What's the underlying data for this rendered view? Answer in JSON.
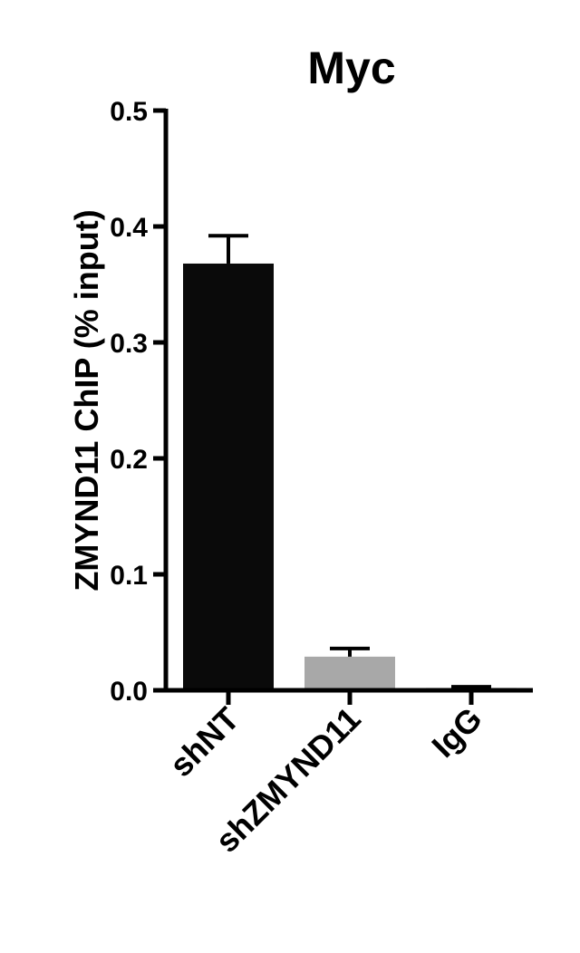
{
  "chart_data": {
    "type": "bar",
    "title": "Myc",
    "xlabel": "",
    "ylabel": "ZMYND11 ChIP (% input)",
    "categories": [
      "shNT",
      "shZMYND11",
      "IgG"
    ],
    "values": [
      0.368,
      0.029,
      0.002
    ],
    "errors": [
      0.024,
      0.007,
      0.001
    ],
    "colors": [
      "#0a0a0a",
      "#a8a8a8",
      "#8a8a8a"
    ],
    "ylim": [
      0,
      0.5
    ],
    "yticks": [
      0.0,
      0.1,
      0.2,
      0.3,
      0.4,
      0.5
    ],
    "ytick_labels": [
      "0.0",
      "0.1",
      "0.2",
      "0.3",
      "0.4",
      "0.5"
    ],
    "grid": false,
    "legend": "none"
  }
}
